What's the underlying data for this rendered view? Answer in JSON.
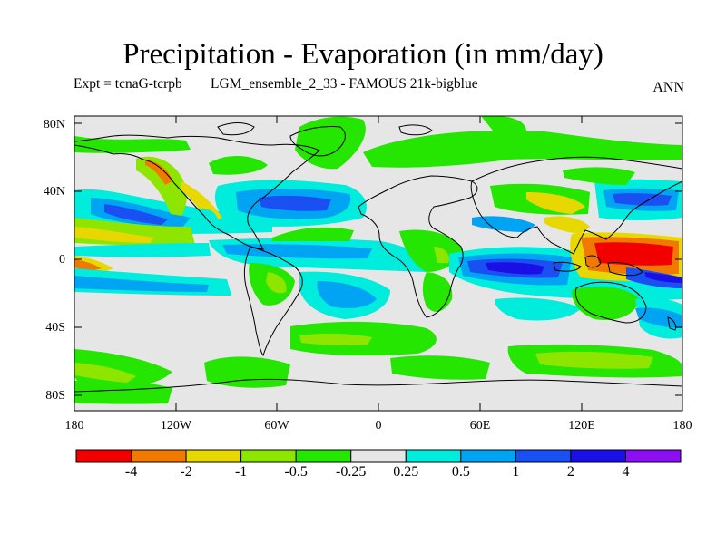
{
  "title": "Precipitation - Evaporation (in mm/day)",
  "subtitle_left": "Expt = tcnaG-tcrpb",
  "subtitle_center": "LGM_ensemble_2_33 - FAMOUS 21k-bigblue",
  "season": "ANN",
  "lat_ticks": [
    "80N",
    "40N",
    "0",
    "40S",
    "80S"
  ],
  "lon_ticks": [
    "180",
    "120W",
    "60W",
    "0",
    "60E",
    "120E",
    "180"
  ],
  "colorbar": {
    "colors": [
      "#f20000",
      "#f07a00",
      "#e6d800",
      "#8ee600",
      "#24e600",
      "#e6e6e6",
      "#00ecdc",
      "#00a4f2",
      "#1a50f2",
      "#1a10e6",
      "#8a10f2"
    ],
    "labels": [
      "-4",
      "-2",
      "-1",
      "-0.5",
      "-0.25",
      "0.25",
      "0.5",
      "1",
      "2",
      "4"
    ]
  },
  "colors": {
    "land_outline": "#000000",
    "background_class": "#e6e6e6"
  }
}
